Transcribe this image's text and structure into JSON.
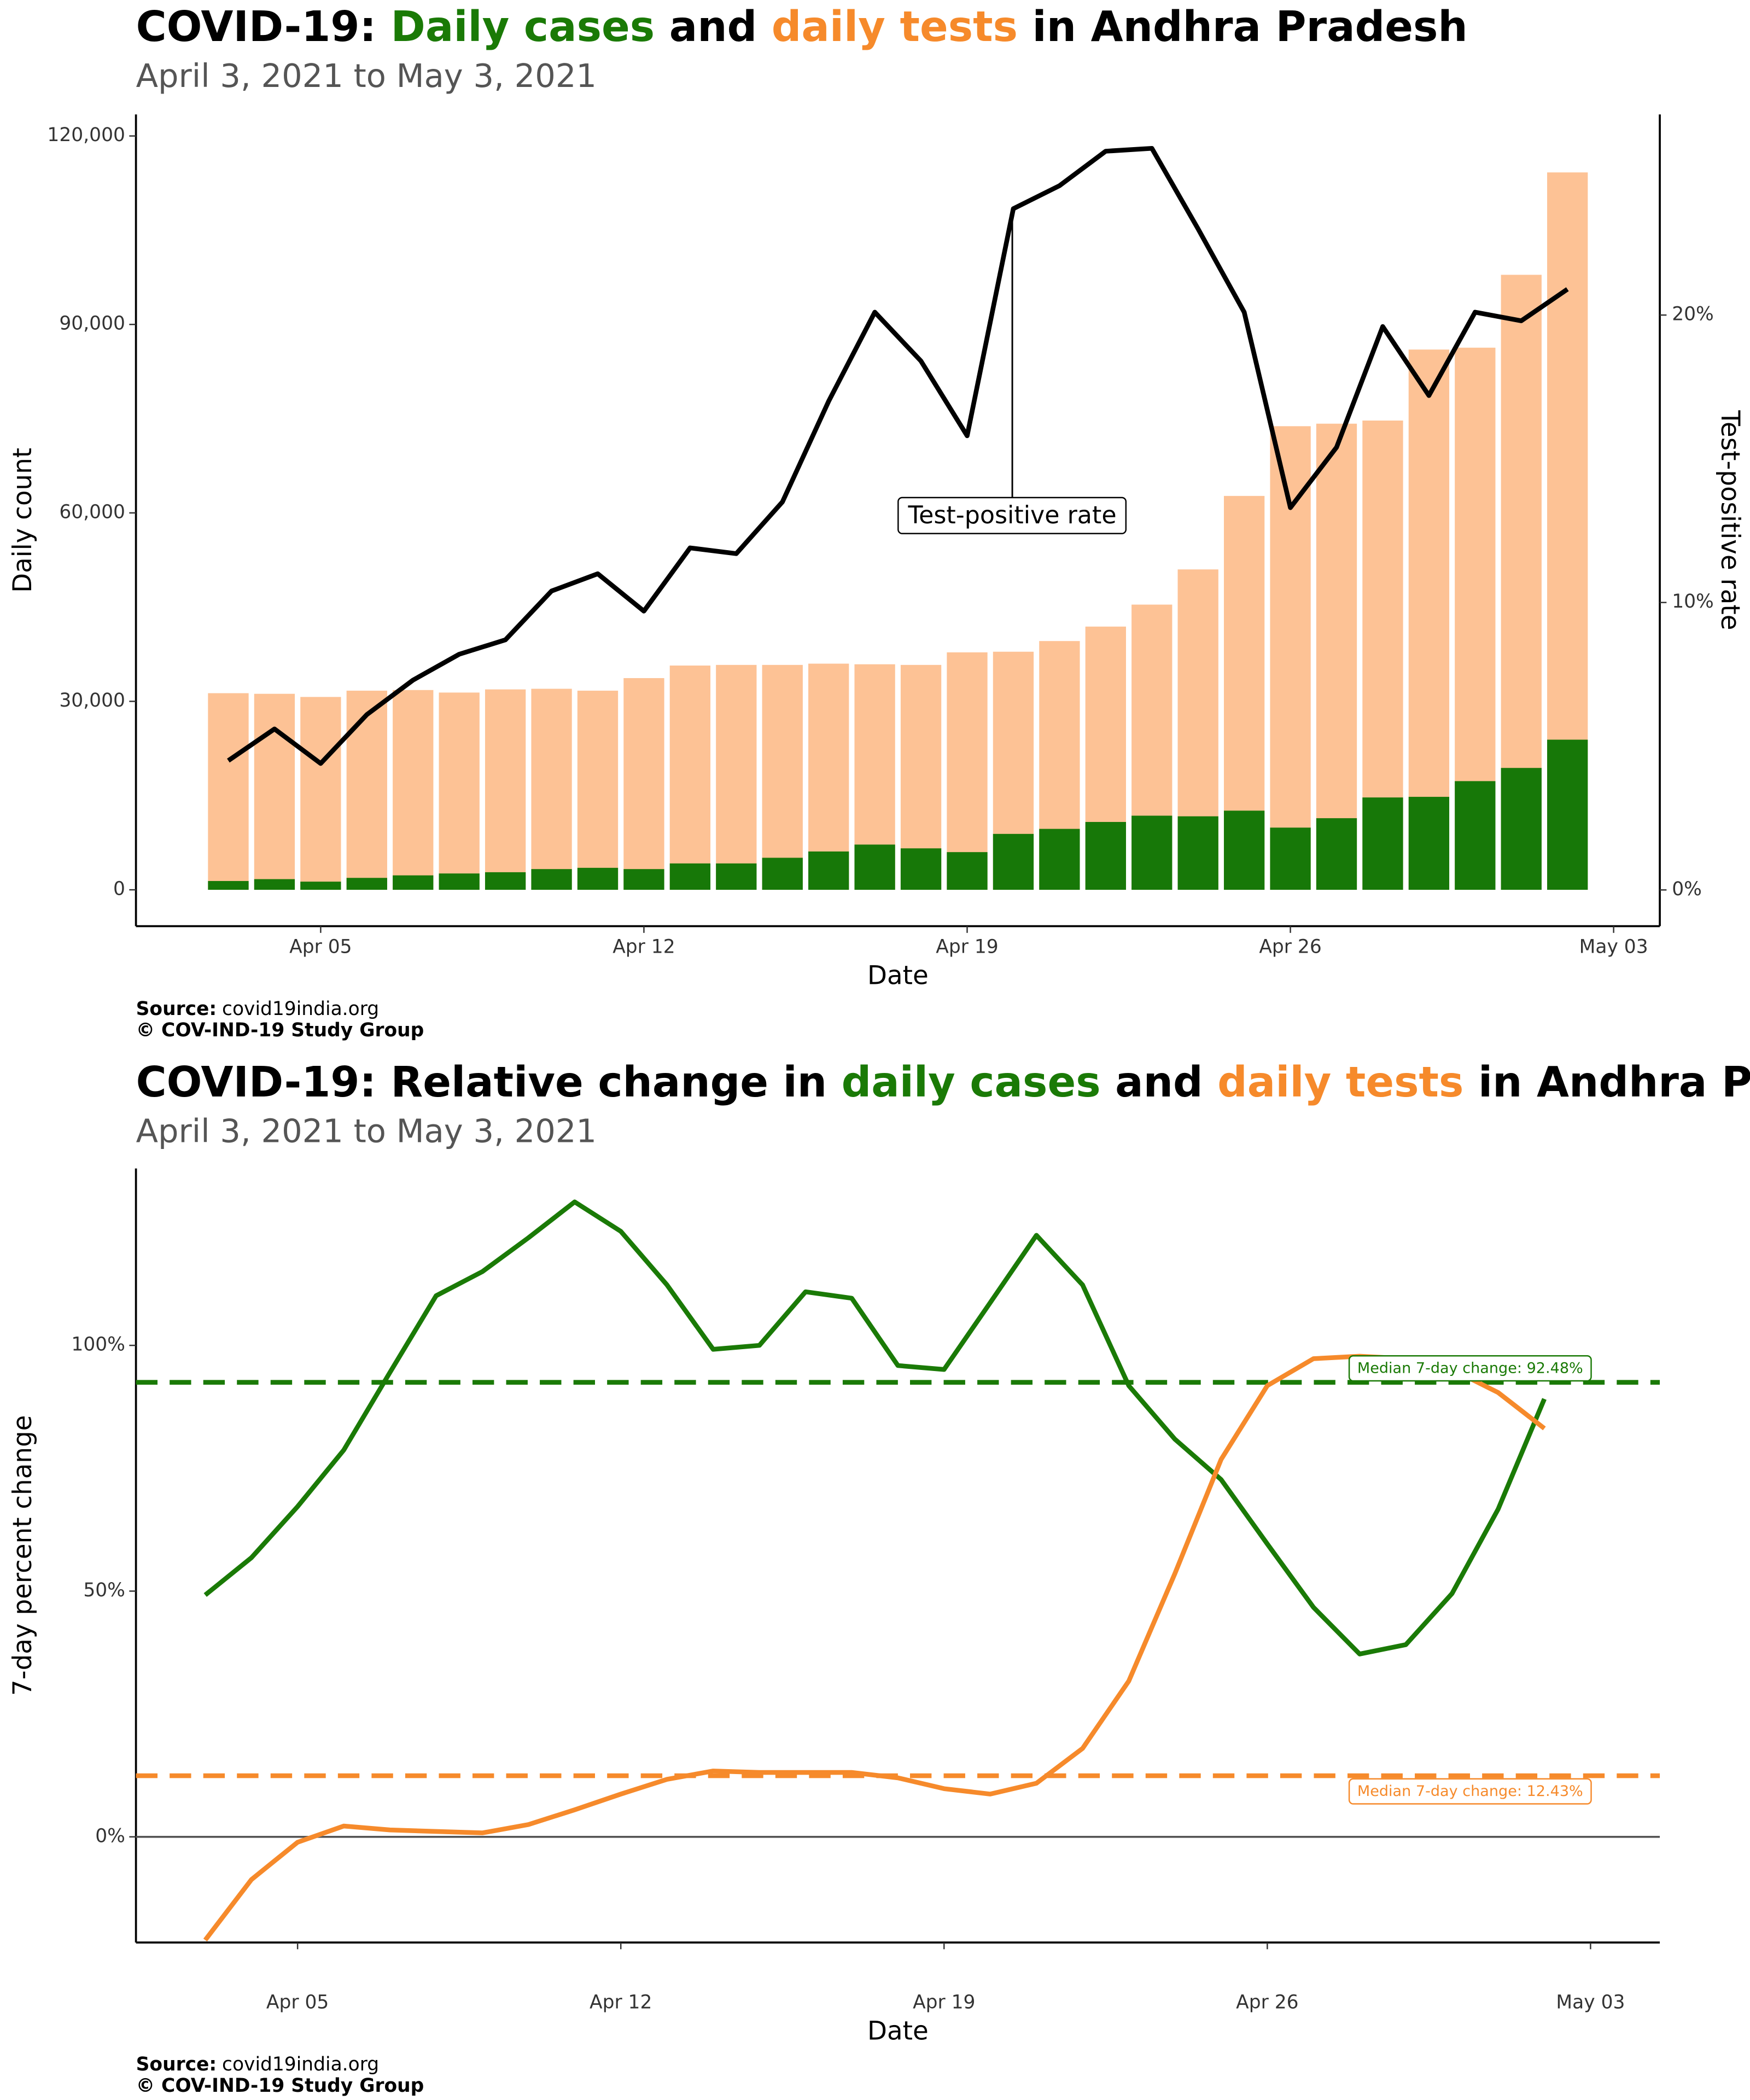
{
  "chart_data": [
    {
      "type": "bar",
      "title": [
        {
          "text": "COVID-19: "
        },
        {
          "text": "Daily cases",
          "color": "#1a7a06"
        },
        {
          "text": " and "
        },
        {
          "text": "daily tests",
          "color": "#f68a2b"
        },
        {
          "text": " in Andhra Pradesh"
        }
      ],
      "subtitle": "April  3, 2021 to May  3, 2021",
      "x_label": "Date",
      "y_label": "Daily count",
      "y2_label": "Test-positive rate",
      "x": [
        "2021-04-03",
        "2021-04-04",
        "2021-04-05",
        "2021-04-06",
        "2021-04-07",
        "2021-04-08",
        "2021-04-09",
        "2021-04-10",
        "2021-04-11",
        "2021-04-12",
        "2021-04-13",
        "2021-04-14",
        "2021-04-15",
        "2021-04-16",
        "2021-04-17",
        "2021-04-18",
        "2021-04-19",
        "2021-04-20",
        "2021-04-21",
        "2021-04-22",
        "2021-04-23",
        "2021-04-24",
        "2021-04-25",
        "2021-04-26",
        "2021-04-27",
        "2021-04-28",
        "2021-04-29",
        "2021-04-30",
        "2021-05-01",
        "2021-05-02"
      ],
      "series": [
        {
          "name": "daily tests",
          "type": "bar",
          "color": "#fdc295",
          "values": [
            31300,
            31200,
            30700,
            31700,
            31800,
            31400,
            31900,
            32000,
            31700,
            33700,
            35700,
            35800,
            35800,
            36000,
            35900,
            35800,
            37800,
            37900,
            39600,
            41900,
            45400,
            51000,
            62700,
            73800,
            74200,
            74700,
            86000,
            86300,
            97900,
            114200
          ]
        },
        {
          "name": "Daily cases",
          "type": "bar",
          "color": "#177808",
          "values": [
            1400,
            1700,
            1300,
            1900,
            2300,
            2600,
            2800,
            3300,
            3500,
            3300,
            4200,
            4200,
            5100,
            6100,
            7200,
            6600,
            6000,
            8900,
            9700,
            10800,
            11800,
            11700,
            12600,
            9900,
            11400,
            14700,
            14800,
            17300,
            19400,
            23900
          ]
        },
        {
          "name": "Test-positive rate",
          "type": "line",
          "axis": "y2",
          "color": "#000000",
          "values": [
            4.5,
            5.6,
            4.4,
            6.1,
            7.3,
            8.2,
            8.7,
            10.4,
            11.0,
            9.7,
            11.9,
            11.7,
            13.5,
            17.0,
            20.1,
            18.4,
            15.8,
            23.7,
            24.5,
            25.7,
            25.8,
            23.0,
            20.1,
            13.3,
            15.4,
            19.6,
            17.2,
            20.1,
            19.8,
            20.9
          ]
        }
      ],
      "annotation": "Test-positive rate",
      "xlim": [
        "2021-04-01",
        "2021-05-04"
      ],
      "xticks": [
        {
          "value": "2021-04-05",
          "label": "Apr 05"
        },
        {
          "value": "2021-04-12",
          "label": "Apr 12"
        },
        {
          "value": "2021-04-19",
          "label": "Apr 19"
        },
        {
          "value": "2021-04-26",
          "label": "Apr 26"
        },
        {
          "value": "2021-05-03",
          "label": "May 03"
        }
      ],
      "ylim": [
        -5786,
        123430
      ],
      "yticks": [
        0,
        {
          "value": 30000,
          "label": "30,000"
        },
        {
          "value": 60000,
          "label": "60,000"
        },
        {
          "value": 90000,
          "label": "90,000"
        },
        {
          "value": 120000,
          "label": "120,000"
        }
      ],
      "y2lim": [
        -1.26,
        26.98
      ],
      "y2ticks": [
        {
          "value": 0,
          "label": "0%"
        },
        {
          "value": 10,
          "label": "10%"
        },
        {
          "value": 20,
          "label": "20%"
        }
      ],
      "grid": false,
      "source_label": "Source:",
      "source": "covid19india.org",
      "credit": "© COV-IND-19 Study Group"
    },
    {
      "type": "line",
      "title": [
        {
          "text": "COVID-19: Relative change in "
        },
        {
          "text": "daily cases",
          "color": "#1a7a06"
        },
        {
          "text": " and "
        },
        {
          "text": "daily tests",
          "color": "#f68a2b"
        },
        {
          "text": " in Andhra Pradesh"
        }
      ],
      "subtitle": "April  3, 2021 to May  3, 2021",
      "x_label": "Date",
      "y_label": "7-day percent change",
      "x": [
        "2021-04-03",
        "2021-04-04",
        "2021-04-05",
        "2021-04-06",
        "2021-04-07",
        "2021-04-08",
        "2021-04-09",
        "2021-04-10",
        "2021-04-11",
        "2021-04-12",
        "2021-04-13",
        "2021-04-14",
        "2021-04-15",
        "2021-04-16",
        "2021-04-17",
        "2021-04-18",
        "2021-04-19",
        "2021-04-20",
        "2021-04-21",
        "2021-04-22",
        "2021-04-23",
        "2021-04-24",
        "2021-04-25",
        "2021-04-26",
        "2021-04-27",
        "2021-04-28",
        "2021-04-29",
        "2021-04-30",
        "2021-05-01",
        "2021-05-02"
      ],
      "series": [
        {
          "name": "daily cases",
          "color": "#1a7a06",
          "values": [
            49.2,
            56.8,
            67.2,
            78.7,
            94.5,
            110.1,
            115.0,
            121.9,
            129.2,
            123.2,
            112.3,
            99.2,
            100.0,
            110.9,
            109.6,
            95.9,
            95.1,
            108.7,
            122.4,
            112.3,
            91.8,
            80.9,
            72.7,
            59.6,
            46.7,
            37.2,
            39.1,
            49.5,
            66.7,
            89.1
          ]
        },
        {
          "name": "daily tests",
          "color": "#f68a2b",
          "values": [
            -21.0,
            -8.7,
            -1.1,
            2.2,
            1.4,
            1.1,
            0.8,
            2.5,
            5.5,
            8.7,
            11.7,
            13.4,
            13.1,
            13.1,
            13.1,
            12.0,
            9.8,
            8.7,
            10.9,
            18.0,
            31.7,
            53.6,
            76.8,
            91.8,
            97.3,
            97.8,
            97.3,
            95.1,
            90.4,
            83.1
          ]
        }
      ],
      "reference_lines": [
        {
          "value": 92.48,
          "label": "Median 7-day change: 92.48%",
          "color": "#1a7a06"
        },
        {
          "value": 12.43,
          "label": "Median 7-day change: 12.43%",
          "color": "#f68a2b"
        }
      ],
      "zero_line": true,
      "xlim": [
        "2021-04-01T12:00Z",
        "2021-05-04T12:00Z"
      ],
      "xticks": [
        {
          "value": "2021-04-05",
          "label": "Apr 05"
        },
        {
          "value": "2021-04-12",
          "label": "Apr 12"
        },
        {
          "value": "2021-04-19",
          "label": "Apr 19"
        },
        {
          "value": "2021-04-26",
          "label": "Apr 26"
        },
        {
          "value": "2021-05-03",
          "label": "May 03"
        }
      ],
      "ylim": [
        -21.5,
        136
      ],
      "yticks": [
        {
          "value": 0,
          "label": "0%"
        },
        {
          "value": 50,
          "label": "50%"
        },
        {
          "value": 100,
          "label": "100%"
        }
      ],
      "grid": false,
      "source_label": "Source:",
      "source": "covid19india.org",
      "credit": "© COV-IND-19 Study Group"
    }
  ]
}
